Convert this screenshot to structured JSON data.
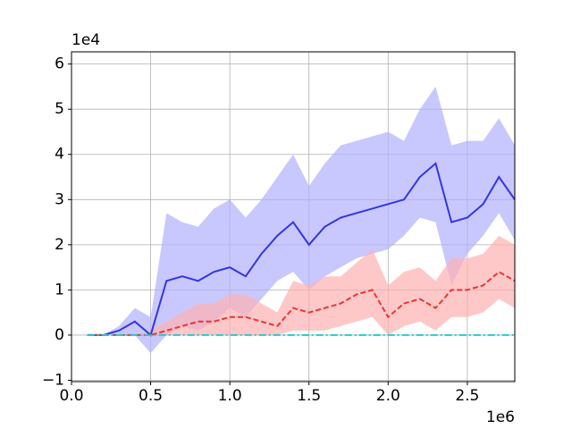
{
  "chart_data": {
    "type": "line",
    "x_offset_label": "1e6",
    "y_offset_label": "1e4",
    "xlim": [
      0,
      2.8
    ],
    "ylim": [
      -1.03,
      6.27
    ],
    "xticks": [
      {
        "value": 0,
        "label": "0.0"
      },
      0.5,
      {
        "value": 1,
        "label": "1.0"
      },
      1.5,
      {
        "value": 2,
        "label": "2.0"
      },
      2.5
    ],
    "yticks": [
      {
        "value": -1,
        "label": "−1"
      },
      0,
      1,
      2,
      3,
      4,
      5,
      6
    ],
    "grid": true,
    "x": [
      0.1,
      0.2,
      0.3,
      0.4,
      0.5,
      0.6,
      0.7,
      0.8,
      0.9,
      1.0,
      1.1,
      1.2,
      1.3,
      1.4,
      1.5,
      1.6,
      1.7,
      1.8,
      1.9,
      2.0,
      2.1,
      2.2,
      2.3,
      2.4,
      2.5,
      2.6,
      2.7,
      2.8
    ],
    "series": [
      {
        "color": "#3333ee",
        "band_color": "#b0b0ff",
        "dash": "solid",
        "values": [
          0,
          0,
          0.1,
          0.3,
          0.0,
          1.2,
          1.3,
          1.2,
          1.4,
          1.5,
          1.3,
          1.8,
          2.2,
          2.5,
          2.0,
          2.4,
          2.6,
          2.7,
          2.8,
          2.9,
          3.0,
          3.5,
          3.8,
          2.5,
          2.6,
          2.9,
          3.5,
          3.0
        ],
        "upper": [
          0,
          0,
          0.2,
          0.6,
          0.4,
          2.7,
          2.5,
          2.4,
          2.8,
          3.0,
          2.6,
          3.0,
          3.5,
          4.0,
          3.3,
          3.8,
          4.2,
          4.3,
          4.4,
          4.5,
          4.3,
          5.0,
          5.5,
          4.2,
          4.3,
          4.3,
          4.8,
          4.2
        ],
        "lower": [
          0,
          0,
          0,
          0,
          -0.4,
          0,
          0.2,
          0.1,
          0.3,
          0.6,
          0.4,
          0.8,
          1.2,
          1.4,
          1.0,
          1.3,
          1.5,
          1.7,
          1.8,
          1.9,
          2.2,
          2.6,
          2.5,
          1.1,
          1.8,
          2.2,
          2.7,
          2.1
        ]
      },
      {
        "color": "#ee3333",
        "band_color": "#ffb0b0",
        "dash": "dashed",
        "values": [
          0,
          0,
          0,
          0,
          0,
          0.1,
          0.2,
          0.3,
          0.3,
          0.4,
          0.4,
          0.3,
          0.2,
          0.6,
          0.5,
          0.6,
          0.7,
          0.9,
          1.0,
          0.4,
          0.7,
          0.8,
          0.6,
          1.0,
          1.0,
          1.1,
          1.4,
          1.2
        ],
        "upper": [
          0,
          0,
          0,
          0,
          0.1,
          0.3,
          0.5,
          0.7,
          0.7,
          0.9,
          0.9,
          0.7,
          0.5,
          1.2,
          1.1,
          1.3,
          1.3,
          1.6,
          1.9,
          1.1,
          1.4,
          1.5,
          1.2,
          1.7,
          1.7,
          1.8,
          2.2,
          2.0
        ],
        "lower": [
          0,
          0,
          0,
          0,
          0,
          0,
          0,
          0,
          0,
          0,
          0,
          0,
          0,
          0.1,
          0.1,
          0.1,
          0.2,
          0.3,
          0.4,
          0,
          0.2,
          0.3,
          0.1,
          0.4,
          0.4,
          0.5,
          0.8,
          0.6
        ]
      },
      {
        "color": "#22cccc",
        "dash": "dashdot",
        "values": [
          0,
          0,
          0,
          0,
          0,
          0,
          0,
          0,
          0,
          0,
          0,
          0,
          0,
          0,
          0,
          0,
          0,
          0,
          0,
          0,
          0,
          0,
          0,
          0,
          0,
          0,
          0,
          0
        ]
      }
    ]
  }
}
